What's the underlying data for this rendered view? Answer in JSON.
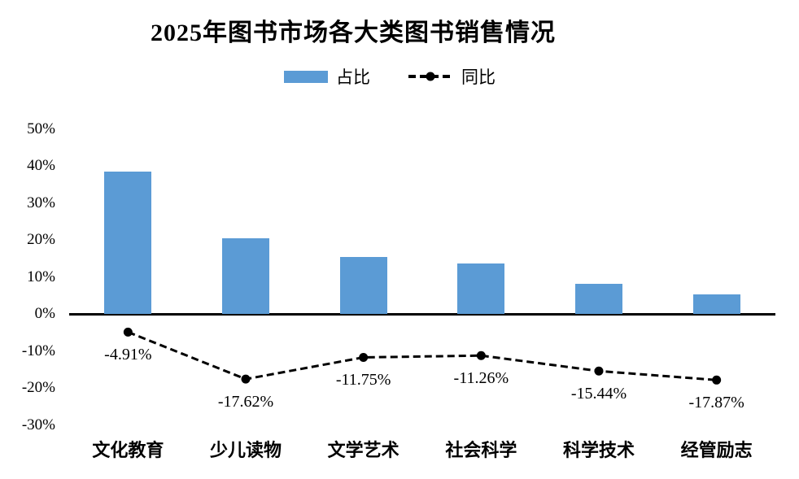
{
  "title": "2025年图书市场各大类图书销售情况",
  "legend": {
    "bar_label": "占比",
    "line_label": "同比"
  },
  "colors": {
    "bar": "#5B9BD5",
    "line": "#000000",
    "axis": "#000000",
    "background": "#FFFFFF",
    "text": "#000000"
  },
  "chart_data": {
    "type": "bar",
    "title": "2025年图书市场各大类图书销售情况",
    "categories": [
      "文化教育",
      "少儿读物",
      "文学艺术",
      "社会科学",
      "科学技术",
      "经管励志"
    ],
    "series": [
      {
        "name": "占比",
        "type": "bar",
        "color": "#5B9BD5",
        "values": [
          38.4,
          20.5,
          15.4,
          13.7,
          8.2,
          5.2
        ]
      },
      {
        "name": "同比",
        "type": "line",
        "color": "#000000",
        "line_style": "dashed",
        "marker": "filled-circle",
        "values": [
          -4.91,
          -17.62,
          -11.75,
          -11.26,
          -15.44,
          -17.87
        ],
        "data_labels": [
          "-4.91%",
          "-17.62%",
          "-11.75%",
          "-11.26%",
          "-15.44%",
          "-17.87%"
        ]
      }
    ],
    "xlabel": "",
    "ylabel": "",
    "ylim": [
      -30,
      50
    ],
    "yticks": [
      {
        "value": 50,
        "label": "50%"
      },
      {
        "value": 40,
        "label": "40%"
      },
      {
        "value": 30,
        "label": "30%"
      },
      {
        "value": 20,
        "label": "20%"
      },
      {
        "value": 10,
        "label": "10%"
      },
      {
        "value": 0,
        "label": "0%"
      },
      {
        "value": -10,
        "label": "-10%"
      },
      {
        "value": -20,
        "label": "-20%"
      },
      {
        "value": -30,
        "label": "-30%"
      }
    ],
    "grid": false,
    "legend_position": "top"
  }
}
